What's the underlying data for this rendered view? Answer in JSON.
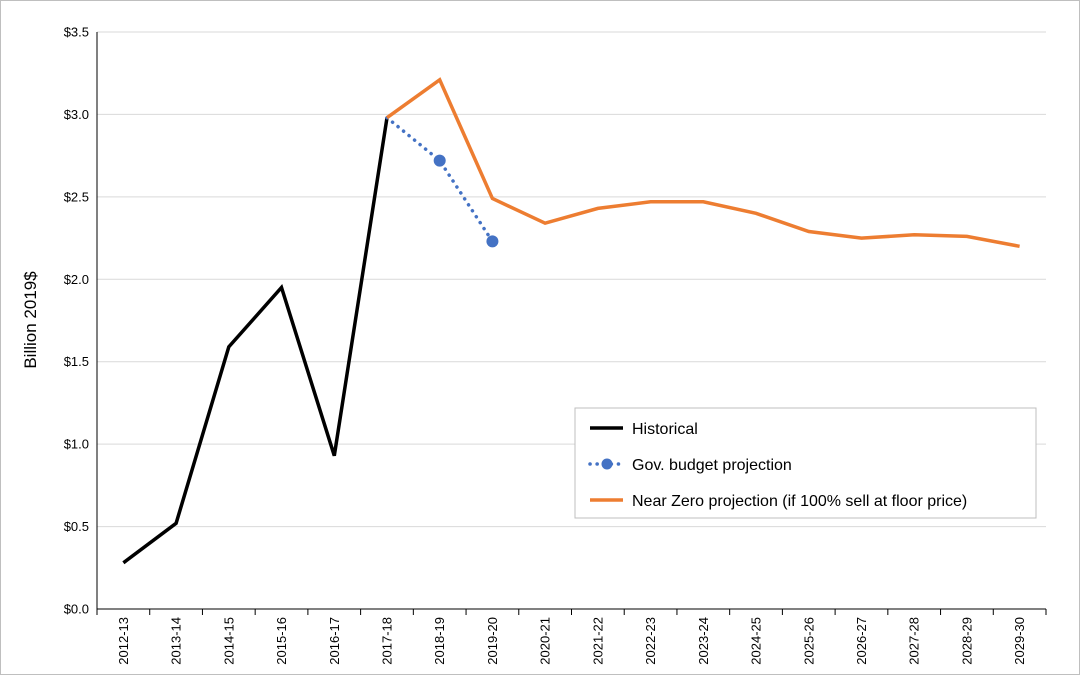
{
  "chart_data": {
    "type": "line",
    "title": "",
    "xlabel": "",
    "ylabel": "Billion 2019$",
    "ylim": [
      0,
      3.5
    ],
    "yticks": [
      0,
      0.5,
      1.0,
      1.5,
      2.0,
      2.5,
      3.0,
      3.5
    ],
    "ytick_labels": [
      "$0.0",
      "$0.5",
      "$1.0",
      "$1.5",
      "$2.0",
      "$2.5",
      "$3.0",
      "$3.5"
    ],
    "grid": "horizontal",
    "legend_position": "center-right",
    "categories": [
      "2012-13",
      "2013-14",
      "2014-15",
      "2015-16",
      "2016-17",
      "2017-18",
      "2018-19",
      "2019-20",
      "2020-21",
      "2021-22",
      "2022-23",
      "2023-24",
      "2024-25",
      "2025-26",
      "2026-27",
      "2027-28",
      "2028-29",
      "2029-30"
    ],
    "series": [
      {
        "name": "Historical",
        "color": "#000000",
        "style": "solid",
        "values": [
          0.28,
          0.52,
          1.59,
          1.95,
          0.93,
          2.98,
          null,
          null,
          null,
          null,
          null,
          null,
          null,
          null,
          null,
          null,
          null,
          null
        ]
      },
      {
        "name": "Gov. budget projection",
        "color": "#4472c4",
        "style": "dotted-markers",
        "values": [
          null,
          null,
          null,
          null,
          null,
          2.98,
          2.72,
          2.23,
          null,
          null,
          null,
          null,
          null,
          null,
          null,
          null,
          null,
          null
        ]
      },
      {
        "name": "Near Zero projection (if 100% sell at floor price)",
        "color": "#ed7d31",
        "style": "solid",
        "values": [
          null,
          null,
          null,
          null,
          null,
          2.98,
          3.21,
          2.49,
          2.34,
          2.43,
          2.47,
          2.47,
          2.4,
          2.29,
          2.25,
          2.27,
          2.26,
          2.2
        ]
      }
    ]
  }
}
